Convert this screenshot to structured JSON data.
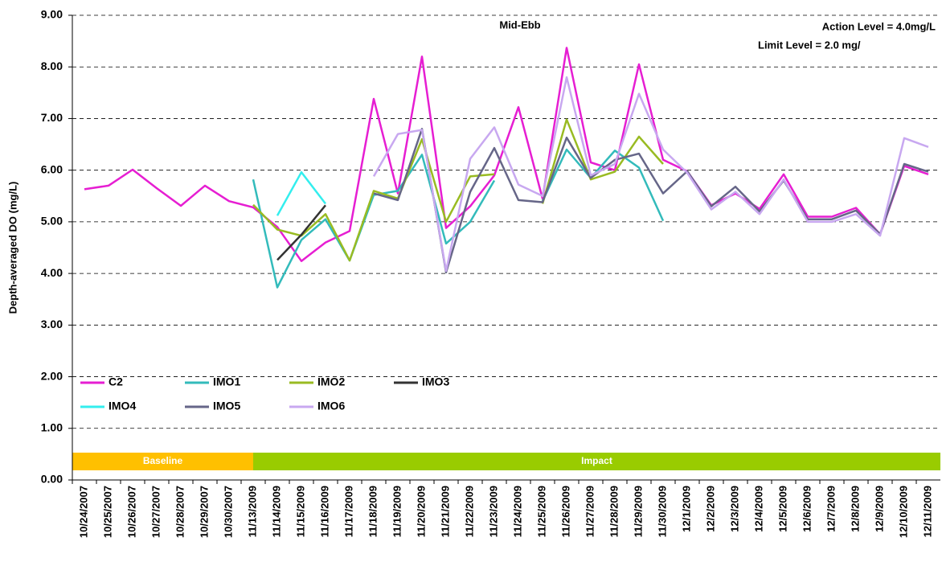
{
  "chart_data": {
    "type": "line",
    "title": "Mid-Ebb",
    "annotations": [
      "Action Level = 4.0mg/L",
      "Limit Level = 2.0 mg/"
    ],
    "y_label": "Depth-averaged DO (mg/L)",
    "categories": [
      "10/24/2007",
      "10/25/2007",
      "10/26/2007",
      "10/27/2007",
      "10/28/2007",
      "10/29/2007",
      "10/30/2007",
      "11/13/2009",
      "11/14/2009",
      "11/15/2009",
      "11/16/2009",
      "11/17/2009",
      "11/18/2009",
      "11/19/2009",
      "11/20/2009",
      "11/21/2009",
      "11/22/2009",
      "11/23/2009",
      "11/24/2009",
      "11/25/2009",
      "11/26/2009",
      "11/27/2009",
      "11/28/2009",
      "11/29/2009",
      "11/30/2009",
      "12/1/2009",
      "12/2/2009",
      "12/3/2009",
      "12/4/2009",
      "12/5/2009",
      "12/6/2009",
      "12/7/2009",
      "12/8/2009",
      "12/9/2009",
      "12/10/2009",
      "12/11/2009"
    ],
    "series": [
      {
        "name": "C2",
        "color": "#e61ed2",
        "values": [
          5.63,
          5.7,
          6.01,
          5.65,
          5.31,
          5.7,
          5.4,
          5.28,
          4.9,
          4.24,
          4.6,
          4.82,
          7.38,
          5.55,
          8.2,
          4.88,
          5.3,
          5.9,
          7.22,
          5.45,
          8.37,
          6.15,
          6.0,
          8.05,
          6.2,
          5.98,
          5.32,
          5.55,
          5.25,
          5.92,
          5.1,
          5.1,
          5.27,
          4.76,
          6.08,
          5.92
        ]
      },
      {
        "name": "IMO1",
        "color": "#33bbbb",
        "values": [
          null,
          null,
          null,
          null,
          null,
          null,
          null,
          5.82,
          3.73,
          4.65,
          5.05,
          4.25,
          5.52,
          5.6,
          6.3,
          4.58,
          5.0,
          5.8,
          null,
          5.4,
          6.4,
          5.85,
          6.38,
          6.05,
          5.02,
          null,
          null,
          null,
          null,
          null,
          null,
          null,
          null,
          null,
          null,
          null
        ]
      },
      {
        "name": "IMO2",
        "color": "#99bb22",
        "values": [
          null,
          null,
          null,
          null,
          null,
          null,
          null,
          5.33,
          4.85,
          4.73,
          5.15,
          4.25,
          5.6,
          5.45,
          6.6,
          5.0,
          5.88,
          5.92,
          null,
          5.35,
          6.98,
          5.82,
          5.97,
          6.65,
          6.12,
          null,
          null,
          null,
          null,
          null,
          null,
          null,
          null,
          null,
          null,
          null
        ]
      },
      {
        "name": "IMO3",
        "color": "#333333",
        "values": [
          null,
          null,
          null,
          null,
          null,
          null,
          null,
          null,
          4.26,
          4.75,
          5.32,
          null,
          null,
          null,
          null,
          null,
          null,
          null,
          null,
          null,
          null,
          null,
          null,
          null,
          null,
          null,
          null,
          null,
          null,
          null,
          null,
          null,
          null,
          null,
          null,
          null
        ]
      },
      {
        "name": "IMO4",
        "color": "#33eeee",
        "values": [
          null,
          null,
          null,
          null,
          null,
          null,
          null,
          null,
          5.12,
          5.96,
          5.35,
          null,
          null,
          null,
          null,
          null,
          null,
          null,
          null,
          null,
          null,
          null,
          null,
          null,
          null,
          null,
          null,
          null,
          null,
          null,
          null,
          null,
          null,
          null,
          null,
          null
        ]
      },
      {
        "name": "IMO5",
        "color": "#666688",
        "values": [
          null,
          null,
          null,
          null,
          null,
          null,
          null,
          null,
          null,
          null,
          null,
          null,
          5.55,
          5.42,
          6.8,
          4.02,
          5.58,
          6.43,
          5.42,
          5.38,
          6.63,
          5.85,
          6.2,
          6.32,
          5.55,
          5.98,
          5.3,
          5.68,
          5.2,
          5.8,
          5.05,
          5.05,
          5.22,
          4.76,
          6.12,
          5.97
        ]
      },
      {
        "name": "IMO6",
        "color": "#c8a8f0",
        "values": [
          null,
          null,
          null,
          null,
          null,
          null,
          null,
          null,
          null,
          null,
          null,
          null,
          5.88,
          6.7,
          6.78,
          4.05,
          6.22,
          6.83,
          5.72,
          5.5,
          7.8,
          5.9,
          6.12,
          7.48,
          6.4,
          5.95,
          5.24,
          5.58,
          5.15,
          5.82,
          5.0,
          5.0,
          5.15,
          4.73,
          6.62,
          6.45
        ]
      }
    ],
    "periods": [
      {
        "label": "Baseline",
        "from": "10/24/2007",
        "to": "11/13/2009",
        "color": "#ffc000"
      },
      {
        "label": "Impact",
        "from": "11/13/2009",
        "to": "12/11/2009",
        "color": "#99cc00"
      }
    ],
    "ylim": [
      0,
      9
    ],
    "yticks": [
      {
        "value": 0,
        "label": "0.00"
      },
      {
        "value": 1,
        "label": "1.00"
      },
      {
        "value": 2,
        "label": "2.00"
      },
      {
        "value": 3,
        "label": "3.00"
      },
      {
        "value": 4,
        "label": "4.00"
      },
      {
        "value": 5,
        "label": "5.00"
      },
      {
        "value": 6,
        "label": "6.00"
      },
      {
        "value": 7,
        "label": "7.00"
      },
      {
        "value": 8,
        "label": "8.00"
      },
      {
        "value": 9,
        "label": "9.00"
      }
    ],
    "grid": true
  }
}
